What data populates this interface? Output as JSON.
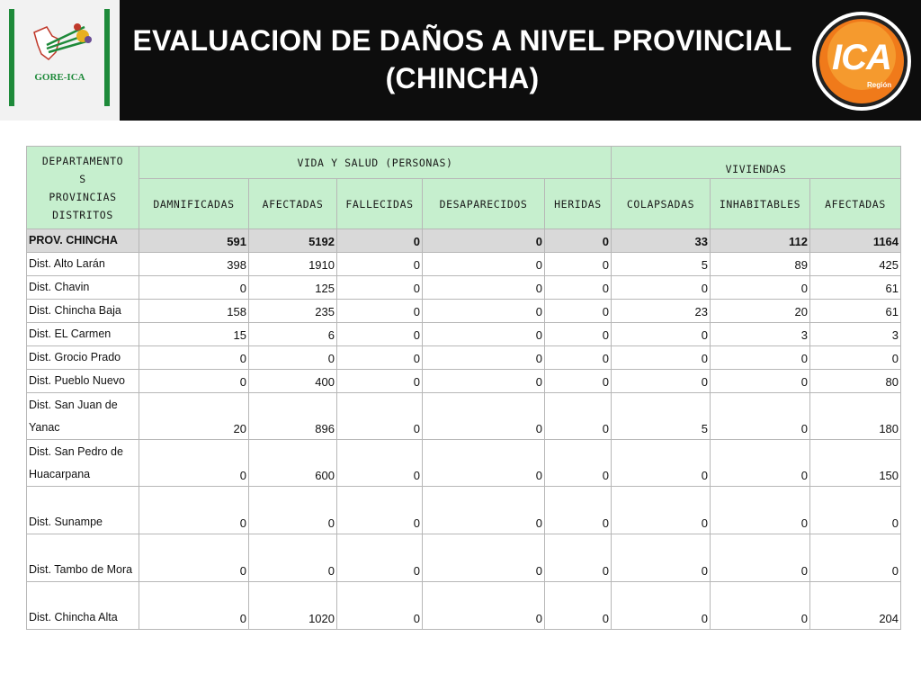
{
  "header": {
    "title_line1": "EVALUACION DE DAÑOS A NIVEL PROVINCIAL",
    "title_line2": "(CHINCHA)",
    "left_logo_label": "GORE-ICA",
    "right_logo_text": "ICA",
    "right_logo_sub": "Región",
    "colors": {
      "bar": "#0d0d0d",
      "gore_green": "#1e8a3a",
      "ica_orange": "#f07a1a"
    }
  },
  "table": {
    "col0_header": [
      "DEPARTAMENTO",
      "S",
      "PROVINCIAS",
      "DISTRITOS"
    ],
    "group_vida": "VIDA Y SALUD (PERSONAS)",
    "group_viviendas": "VIVIENDAS",
    "columns": [
      "DAMNIFICADAS",
      "AFECTADAS",
      "FALLECIDAS",
      "DESAPARECIDOS",
      "HERIDAS",
      "COLAPSADAS",
      "INHABITABLES",
      "AFECTADAS"
    ],
    "header_color": "#c6efce",
    "total_color": "#d9d9d9",
    "rows": [
      {
        "name_lines": [
          "PROV. CHINCHA"
        ],
        "values": [
          "591",
          "5192",
          "0",
          "0",
          "0",
          "33",
          "112",
          "1164"
        ],
        "total": true
      },
      {
        "name_lines": [
          "Dist. Alto Larán"
        ],
        "values": [
          "398",
          "1910",
          "0",
          "0",
          "0",
          "5",
          "89",
          "425"
        ]
      },
      {
        "name_lines": [
          "Dist. Chavin"
        ],
        "values": [
          "0",
          "125",
          "0",
          "0",
          "0",
          "0",
          "0",
          "61"
        ]
      },
      {
        "name_lines": [
          "Dist. Chincha Baja"
        ],
        "values": [
          "158",
          "235",
          "0",
          "0",
          "0",
          "23",
          "20",
          "61"
        ]
      },
      {
        "name_lines": [
          "Dist. EL Carmen"
        ],
        "values": [
          "15",
          "6",
          "0",
          "0",
          "0",
          "0",
          "3",
          "3"
        ]
      },
      {
        "name_lines": [
          "Dist. Grocio Prado"
        ],
        "values": [
          "0",
          "0",
          "0",
          "0",
          "0",
          "0",
          "0",
          "0"
        ]
      },
      {
        "name_lines": [
          "Dist. Pueblo Nuevo"
        ],
        "values": [
          "0",
          "400",
          "0",
          "0",
          "0",
          "0",
          "0",
          "80"
        ]
      },
      {
        "name_lines": [
          "Dist. San Juan de",
          "Yanac"
        ],
        "values": [
          "20",
          "896",
          "0",
          "0",
          "0",
          "5",
          "0",
          "180"
        ]
      },
      {
        "name_lines": [
          "Dist. San Pedro de",
          "Huacarpana"
        ],
        "values": [
          "0",
          "600",
          "0",
          "0",
          "0",
          "0",
          "0",
          "150"
        ]
      },
      {
        "name_lines": [
          "",
          "Dist. Sunampe"
        ],
        "values": [
          "0",
          "0",
          "0",
          "0",
          "0",
          "0",
          "0",
          "0"
        ]
      },
      {
        "name_lines": [
          "",
          "Dist. Tambo de Mora"
        ],
        "values": [
          "0",
          "0",
          "0",
          "0",
          "0",
          "0",
          "0",
          "0"
        ]
      },
      {
        "name_lines": [
          "",
          "Dist. Chincha Alta"
        ],
        "values": [
          "0",
          "1020",
          "0",
          "0",
          "0",
          "0",
          "0",
          "204"
        ]
      }
    ]
  }
}
